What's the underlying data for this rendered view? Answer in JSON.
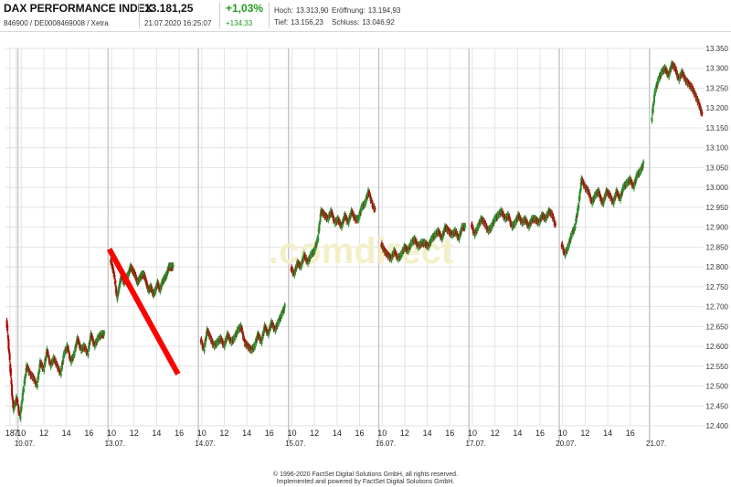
{
  "header": {
    "index_name": "DAX PERFORMANCE INDEX",
    "identifiers": "846900 / DE0008469008 / Xetra",
    "last_value": "13.181,25",
    "datetime": "21.07.2020 16:25:07",
    "change_pct": "+1,03%",
    "change_abs": "+134,33",
    "high_label": "Hoch:",
    "high_value": "13.313,90",
    "low_label": "Tief:",
    "low_value": "13.156,23",
    "open_label": "Eröffnung:",
    "open_value": "13.194,93",
    "close_label": "Schluss:",
    "close_value": "13.046,92"
  },
  "footer": {
    "line1": "© 1996-2020 FactSet Digital Solutions GmbH, all rights reserved.",
    "line2": "Implemented and powered by FactSet Digital Solutions GmbH."
  },
  "watermark": ".comdirect",
  "colors": {
    "up": "#2e8b2e",
    "down": "#b00000",
    "annotation": "#ff0000",
    "grid": "#e3e3e3",
    "day_separator": "#c8c8c8"
  },
  "chart_data": {
    "type": "candlestick",
    "title": "DAX PERFORMANCE INDEX",
    "ylim": [
      12400,
      13350
    ],
    "y_ticks": [
      "12.400",
      "12.450",
      "12.500",
      "12.550",
      "12.600",
      "12.650",
      "12.700",
      "12.750",
      "12.800",
      "12.850",
      "12.900",
      "12.950",
      "13.000",
      "13.050",
      "13.100",
      "13.150",
      "13.200",
      "13.250",
      "13.300",
      "13.350"
    ],
    "y_tick_values": [
      12400,
      12450,
      12500,
      12550,
      12600,
      12650,
      12700,
      12750,
      12800,
      12850,
      12900,
      12950,
      13000,
      13050,
      13100,
      13150,
      13200,
      13250,
      13300,
      13350
    ],
    "x_tick_labels": [
      {
        "label": "18",
        "t": 0.0
      },
      {
        "label": "7",
        "t": 0.55
      },
      {
        "label": "10",
        "t": 1.0
      },
      {
        "label": "12",
        "t": 3.0
      },
      {
        "label": "14",
        "t": 5.0
      },
      {
        "label": "16",
        "t": 7.0
      },
      {
        "label": "10",
        "t": 9.0
      },
      {
        "label": "12",
        "t": 11.0
      },
      {
        "label": "14",
        "t": 13.0
      },
      {
        "label": "16",
        "t": 15.0
      },
      {
        "label": "10",
        "t": 17.0
      },
      {
        "label": "12",
        "t": 19.0
      },
      {
        "label": "14",
        "t": 21.0
      },
      {
        "label": "16",
        "t": 23.0
      },
      {
        "label": "10",
        "t": 25.0
      },
      {
        "label": "12",
        "t": 27.0
      },
      {
        "label": "14",
        "t": 29.0
      },
      {
        "label": "16",
        "t": 31.0
      },
      {
        "label": "10",
        "t": 33.0
      },
      {
        "label": "12",
        "t": 35.0
      },
      {
        "label": "14",
        "t": 37.0
      },
      {
        "label": "16",
        "t": 39.0
      },
      {
        "label": "10",
        "t": 41.0
      },
      {
        "label": "12",
        "t": 43.0
      },
      {
        "label": "14",
        "t": 45.0
      },
      {
        "label": "16",
        "t": 47.0
      },
      {
        "label": "10",
        "t": 49.0
      },
      {
        "label": "12",
        "t": 51.0
      },
      {
        "label": "14",
        "t": 53.0
      },
      {
        "label": "16",
        "t": 55.0
      }
    ],
    "date_labels": [
      {
        "label": "10.07.",
        "t": 1.3
      },
      {
        "label": "13.07.",
        "t": 9.3
      },
      {
        "label": "14.07.",
        "t": 17.3
      },
      {
        "label": "15.07.",
        "t": 25.3
      },
      {
        "label": "16.07.",
        "t": 33.3
      },
      {
        "label": "17.07.",
        "t": 41.3
      },
      {
        "label": "20.07.",
        "t": 49.3
      },
      {
        "label": "21.07.",
        "t": 57.3
      }
    ],
    "day_separators": [
      0.7,
      8.7,
      16.7,
      24.7,
      32.7,
      40.7,
      48.7,
      56.7
    ],
    "t_max": 61.5,
    "series": [
      {
        "t": [
          -0.3,
          0.0,
          0.3,
          0.6,
          0.9,
          1.2,
          1.5,
          1.8,
          2.1,
          2.4,
          2.7,
          3.0,
          3.3,
          3.6,
          3.9,
          4.2,
          4.5,
          4.8,
          5.1,
          5.4,
          5.7,
          6.0,
          6.3,
          6.6,
          6.9,
          7.2,
          7.5,
          7.8,
          8.1,
          8.4
        ],
        "values": [
          12670,
          12560,
          12440,
          12470,
          12420,
          12490,
          12550,
          12530,
          12520,
          12500,
          12560,
          12540,
          12590,
          12550,
          12570,
          12550,
          12530,
          12580,
          12600,
          12560,
          12580,
          12620,
          12590,
          12600,
          12580,
          12630,
          12600,
          12620,
          12630,
          12630
        ]
      },
      {
        "t": [
          8.9,
          9.1,
          9.3,
          9.5,
          9.7,
          9.9,
          10.1,
          10.3,
          10.5,
          10.7,
          10.9,
          11.1,
          11.3,
          11.5,
          11.7,
          11.9,
          12.1,
          12.3,
          12.5,
          12.7,
          12.9,
          13.1,
          13.3,
          13.5,
          13.7,
          13.9,
          14.1,
          14.3,
          14.5
        ],
        "values": [
          12820,
          12800,
          12770,
          12720,
          12750,
          12780,
          12760,
          12770,
          12780,
          12800,
          12790,
          12780,
          12760,
          12770,
          12780,
          12780,
          12760,
          12740,
          12750,
          12730,
          12740,
          12760,
          12740,
          12760,
          12770,
          12780,
          12800,
          12800,
          12800
        ]
      },
      {
        "t": [
          16.9,
          17.2,
          17.5,
          17.8,
          18.1,
          18.4,
          18.7,
          19.0,
          19.3,
          19.6,
          19.9,
          20.2,
          20.5,
          20.8,
          21.1,
          21.4,
          21.7,
          22.0,
          22.3,
          22.6,
          22.9,
          23.2,
          23.5,
          23.8,
          24.1,
          24.4
        ],
        "values": [
          12620,
          12590,
          12640,
          12620,
          12600,
          12610,
          12620,
          12600,
          12630,
          12610,
          12620,
          12640,
          12650,
          12610,
          12600,
          12590,
          12600,
          12630,
          12610,
          12650,
          12630,
          12660,
          12640,
          12660,
          12680,
          12700
        ]
      },
      {
        "t": [
          24.9,
          25.2,
          25.5,
          25.8,
          26.1,
          26.4,
          26.7,
          27.0,
          27.3,
          27.6,
          27.9,
          28.2,
          28.5,
          28.8,
          29.1,
          29.4,
          29.7,
          30.0,
          30.3,
          30.6,
          30.9,
          31.2,
          31.5,
          31.8,
          32.1,
          32.4
        ],
        "values": [
          12800,
          12780,
          12810,
          12800,
          12830,
          12810,
          12830,
          12840,
          12870,
          12940,
          12930,
          12920,
          12940,
          12910,
          12920,
          12900,
          12930,
          12910,
          12940,
          12920,
          12920,
          12950,
          12960,
          12990,
          12960,
          12940
        ]
      },
      {
        "t": [
          32.9,
          33.2,
          33.5,
          33.8,
          34.1,
          34.4,
          34.7,
          35.0,
          35.3,
          35.6,
          35.9,
          36.2,
          36.5,
          36.8,
          37.1,
          37.4,
          37.7,
          38.0,
          38.3,
          38.6,
          38.9,
          39.2,
          39.5,
          39.8,
          40.1,
          40.4
        ],
        "values": [
          12860,
          12840,
          12830,
          12820,
          12840,
          12820,
          12830,
          12850,
          12840,
          12860,
          12870,
          12850,
          12860,
          12860,
          12850,
          12870,
          12880,
          12890,
          12870,
          12900,
          12890,
          12880,
          12890,
          12870,
          12900,
          12900
        ]
      },
      {
        "t": [
          40.9,
          41.2,
          41.5,
          41.8,
          42.1,
          42.4,
          42.7,
          43.0,
          43.3,
          43.6,
          43.9,
          44.2,
          44.5,
          44.8,
          45.1,
          45.4,
          45.7,
          46.0,
          46.3,
          46.6,
          46.9,
          47.2,
          47.5,
          47.8,
          48.1,
          48.4
        ],
        "values": [
          12910,
          12880,
          12900,
          12920,
          12910,
          12890,
          12900,
          12920,
          12930,
          12940,
          12920,
          12930,
          12900,
          12910,
          12930,
          12910,
          12920,
          12900,
          12920,
          12920,
          12910,
          12930,
          12920,
          12940,
          12930,
          12900
        ]
      },
      {
        "t": [
          48.9,
          49.2,
          49.5,
          49.8,
          50.1,
          50.4,
          50.7,
          51.0,
          51.3,
          51.6,
          51.9,
          52.2,
          52.4,
          52.6,
          52.9,
          53.2,
          53.5,
          53.8,
          54.1,
          54.4,
          54.7,
          55.0,
          55.3,
          55.6,
          55.9,
          56.2
        ],
        "values": [
          12860,
          12830,
          12850,
          12880,
          12900,
          12950,
          13020,
          13000,
          12990,
          12960,
          12980,
          12990,
          12970,
          12960,
          12990,
          12980,
          12960,
          12990,
          12970,
          13000,
          13010,
          13020,
          13000,
          13030,
          13040,
          13060
        ]
      },
      {
        "t": [
          56.9,
          57.2,
          57.5,
          57.8,
          58.1,
          58.4,
          58.7,
          59.0,
          59.3,
          59.6,
          59.9,
          60.2,
          60.5,
          60.8,
          61.1,
          61.4
        ],
        "values": [
          13170,
          13240,
          13270,
          13290,
          13300,
          13280,
          13310,
          13300,
          13270,
          13290,
          13270,
          13260,
          13250,
          13230,
          13210,
          13180
        ]
      }
    ],
    "annotation_line": {
      "from": {
        "t": 8.8,
        "y": 12845
      },
      "to": {
        "t": 14.9,
        "y": 12530
      }
    },
    "grid": true
  }
}
